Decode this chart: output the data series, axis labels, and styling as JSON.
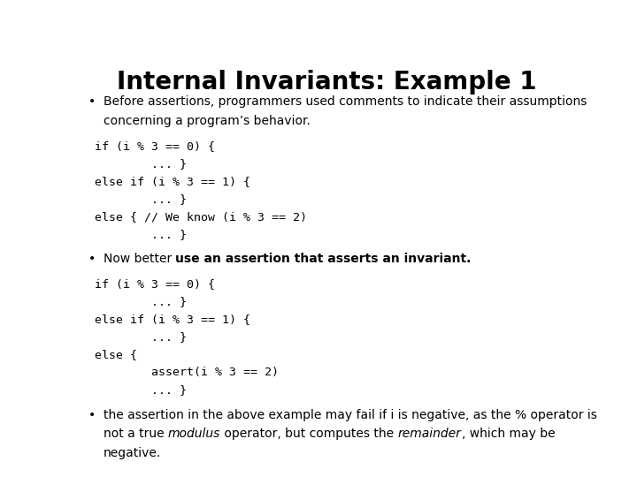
{
  "title": "Internal Invariants: Example 1",
  "title_fontsize": 20,
  "bg_color": "#ffffff",
  "text_color": "#000000",
  "bullet1_line1": "Before assertions, programmers used comments to indicate their assumptions",
  "bullet1_line2": "concerning a program’s behavior.",
  "code1": [
    "if (i % 3 == 0) {",
    "        ... }",
    "else if (i % 3 == 1) {",
    "        ... }",
    "else { // We know (i % 3 == 2)",
    "        ... }"
  ],
  "code2": [
    "if (i % 3 == 0) {",
    "        ... }",
    "else if (i % 3 == 1) {",
    "        ... }",
    "else {",
    "        assert(i % 3 == 2)",
    "        ... }"
  ],
  "code_fontsize": 9.5,
  "bullet_fontsize": 10,
  "code_font": "monospace"
}
